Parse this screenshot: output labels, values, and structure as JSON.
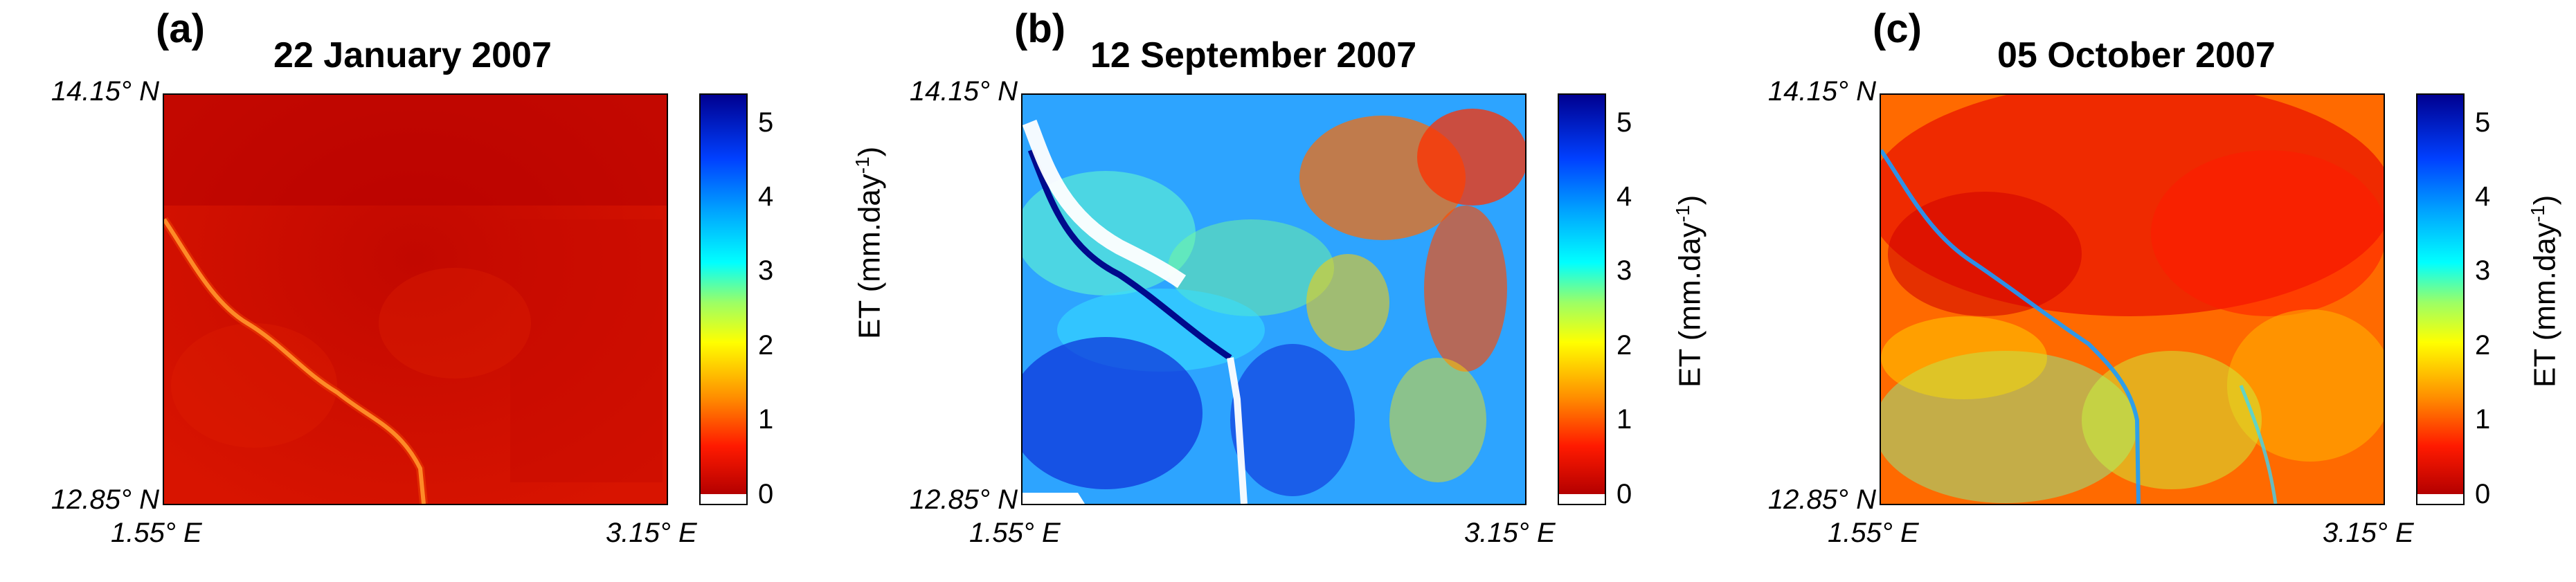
{
  "panels": [
    {
      "letter": "(a)",
      "title": "22 January 2007"
    },
    {
      "letter": "(b)",
      "title": "12 September 2007"
    },
    {
      "letter": "(c)",
      "title": "05 October 2007"
    }
  ],
  "axes": {
    "lat_top": "14.15° N",
    "lat_bottom": "12.85° N",
    "lon_left": "1.55° E",
    "lon_right": "3.15° E"
  },
  "colorbar": {
    "label": "ET (mm.day",
    "label_sup": "-1",
    "label_close": ")",
    "ticks": [
      "5",
      "4",
      "3",
      "2",
      "1",
      "0"
    ],
    "range": [
      0,
      5.5
    ]
  },
  "colors": {
    "low": "#b40000",
    "mid": "#ffff00",
    "high": "#000090"
  }
}
